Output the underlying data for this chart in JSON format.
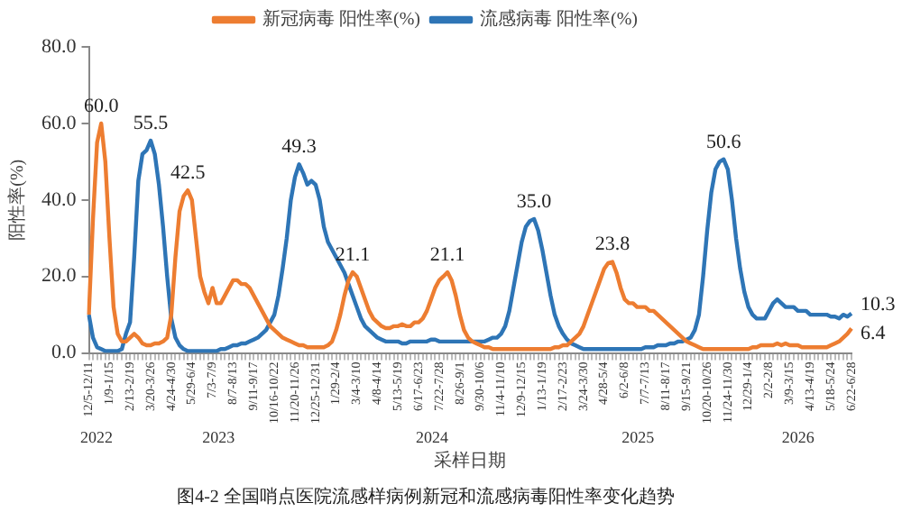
{
  "chart_data": {
    "type": "line",
    "title": "图4-2 全国哨点医院流感样病例新冠和流感病毒阳性率变化趋势",
    "xlabel": "采样日期",
    "ylabel": "阳性率(%)",
    "categories": [
      "12/5-12/11",
      null,
      null,
      null,
      null,
      "1/9-1/15",
      null,
      null,
      null,
      null,
      "2/13-2/19",
      null,
      null,
      null,
      null,
      "3/20-3/26",
      null,
      null,
      null,
      null,
      "4/24-4/30",
      null,
      null,
      null,
      null,
      "5/29-6/4",
      null,
      null,
      null,
      null,
      "7/3-7/9",
      null,
      null,
      null,
      null,
      "8/7-8/13",
      null,
      null,
      null,
      null,
      "9/11-9/17",
      null,
      null,
      null,
      null,
      "10/16-10/22",
      null,
      null,
      null,
      null,
      "11/20-11/26",
      null,
      null,
      null,
      null,
      "12/25-12/31",
      null,
      null,
      null,
      null,
      "1/29-2/4",
      null,
      null,
      null,
      null,
      "3/4-3/10",
      null,
      null,
      null,
      null,
      "4/8-4/14",
      null,
      null,
      null,
      null,
      "5/13-5/19",
      null,
      null,
      null,
      null,
      "6/17-6/23",
      null,
      null,
      null,
      null,
      "7/22-7/28",
      null,
      null,
      null,
      null,
      "8/26-9/1",
      null,
      null,
      null,
      null,
      "9/30-10/6",
      null,
      null,
      null,
      null,
      "11/4-11/10",
      null,
      null,
      null,
      null,
      "12/9-12/15",
      null,
      null,
      null,
      null,
      "1/13-1/19",
      null,
      null,
      null,
      null,
      "2/17-2/23",
      null,
      null,
      null,
      null,
      "3/24-3/30",
      null,
      null,
      null,
      null,
      "4/28-5/4",
      null,
      null,
      null,
      null,
      "6/2-6/8",
      null,
      null,
      null,
      null,
      "7/7-7/13",
      null,
      null,
      null,
      null,
      "8/11-8/17",
      null,
      null,
      null,
      null,
      "9/15-9/21",
      null,
      null,
      null,
      null,
      "10/20-10/26",
      null,
      null,
      null,
      null,
      "11/24-11/30",
      null,
      null,
      null,
      null,
      "12/29-1/4",
      null,
      null,
      null,
      null,
      "2/2-2/8",
      null,
      null,
      null,
      null,
      "3/9-3/15",
      null,
      null,
      null,
      null,
      "4/13-4/19",
      null,
      null,
      null,
      null,
      "5/18-5/24",
      null,
      null,
      null,
      null,
      "6/22-6/28"
    ],
    "series": [
      {
        "name": "新冠病毒 阳性率(%)",
        "color": "#ed7d31",
        "values": [
          10,
          35,
          55,
          60.0,
          50,
          30,
          12,
          5,
          3,
          3,
          4,
          5,
          4,
          2.5,
          2,
          2,
          2.5,
          2.5,
          3,
          4,
          10,
          25,
          37,
          41,
          42.5,
          40,
          30,
          20,
          16,
          13,
          17,
          13,
          13,
          15,
          17,
          19,
          19,
          18,
          18,
          17,
          15,
          13,
          11,
          9,
          7,
          6,
          5,
          4,
          3.5,
          3,
          2.5,
          2,
          2,
          1.5,
          1.5,
          1.5,
          1.5,
          1.5,
          2,
          3,
          6,
          10,
          15,
          19,
          21.1,
          20,
          17,
          14,
          11,
          9,
          8,
          7,
          6.5,
          6.5,
          7,
          7,
          7.5,
          7,
          7,
          8,
          8,
          9,
          11,
          14,
          17,
          19,
          20,
          21.1,
          19,
          15,
          10,
          6,
          4,
          3,
          2.5,
          2,
          1.5,
          1.5,
          1,
          1,
          1,
          1,
          1,
          1,
          1,
          1,
          1,
          1,
          1,
          1,
          1,
          1,
          1,
          1.5,
          1.5,
          2,
          2,
          3,
          4,
          5,
          7,
          10,
          13,
          16,
          19,
          22,
          23.5,
          23.8,
          21,
          17,
          14,
          13,
          13,
          12,
          12,
          12,
          11,
          11,
          10,
          9,
          8,
          7,
          6,
          5,
          4,
          3,
          2.5,
          2,
          1.5,
          1,
          1,
          1,
          1,
          1,
          1,
          1,
          1,
          1,
          1,
          1,
          1,
          1.5,
          1.5,
          2,
          2,
          2,
          2,
          2.5,
          2,
          2.5,
          2,
          2,
          2,
          1.5,
          1.5,
          1.5,
          1.5,
          1.5,
          1.5,
          1.5,
          2,
          2.5,
          3,
          4,
          5,
          6.4
        ],
        "value_labels": [
          null,
          null,
          null,
          "60.0",
          null,
          null,
          null,
          null,
          null,
          null,
          null,
          null,
          null,
          null,
          null,
          null,
          null,
          null,
          null,
          null,
          null,
          null,
          null,
          null,
          "42.5",
          null,
          null,
          null,
          null,
          null,
          null,
          null,
          null,
          null,
          null,
          null,
          null,
          null,
          null,
          null,
          null,
          null,
          null,
          null,
          null,
          null,
          null,
          null,
          null,
          null,
          null,
          null,
          null,
          null,
          null,
          null,
          null,
          null,
          null,
          null,
          null,
          null,
          null,
          null,
          "21.1",
          null,
          null,
          null,
          null,
          null,
          null,
          null,
          null,
          null,
          null,
          null,
          null,
          null,
          null,
          null,
          null,
          null,
          null,
          null,
          null,
          null,
          null,
          "21.1",
          null,
          null,
          null,
          null,
          null,
          null,
          null,
          null,
          null,
          null,
          null,
          null,
          null,
          null,
          null,
          null,
          null,
          null,
          null,
          null,
          null,
          null,
          null,
          null,
          null,
          null,
          null,
          null,
          null,
          null,
          null,
          null,
          null,
          null,
          null,
          null,
          null,
          null,
          null,
          "23.8",
          null,
          null,
          null,
          null,
          null,
          null,
          null,
          null,
          null,
          null,
          null,
          null,
          null,
          null,
          null,
          null,
          null,
          null,
          null,
          null,
          null,
          null,
          null,
          null,
          null,
          null,
          null,
          null,
          null,
          null,
          null,
          null,
          null,
          null,
          null,
          null,
          null,
          null,
          null,
          null,
          null,
          null,
          null,
          null,
          null,
          null,
          null,
          null,
          null,
          null,
          null,
          null,
          null,
          null,
          null,
          null,
          null,
          "6.4"
        ]
      },
      {
        "name": "流感病毒 阳性率(%)",
        "color": "#2e75b6",
        "values": [
          10,
          4,
          1.5,
          1,
          0.5,
          0.5,
          0.5,
          0.5,
          1,
          5,
          8,
          25,
          45,
          52,
          53,
          55.5,
          52,
          44,
          33,
          20,
          9,
          4,
          2,
          1,
          0.5,
          0.5,
          0.5,
          0.5,
          0.5,
          0.5,
          0.5,
          0.5,
          1,
          1,
          1.5,
          2,
          2,
          2.5,
          2.5,
          3,
          3.5,
          4,
          5,
          6,
          8,
          10,
          15,
          22,
          30,
          40,
          46,
          49.3,
          47,
          44,
          45,
          44,
          40,
          33,
          29,
          27,
          25,
          23,
          21,
          18,
          15,
          12,
          9,
          7,
          6,
          5,
          4,
          3.5,
          3,
          3,
          3,
          3,
          2.5,
          2.5,
          3,
          3,
          3,
          3,
          3,
          3.5,
          3.5,
          3,
          3,
          3,
          3,
          3,
          3,
          3,
          3,
          3,
          3,
          3,
          3,
          3.5,
          4,
          4,
          5,
          7,
          11,
          17,
          23,
          29,
          33,
          34.5,
          35.0,
          32,
          27,
          21,
          15,
          10,
          7,
          5,
          3.5,
          2.5,
          2,
          1.5,
          1,
          1,
          1,
          1,
          1,
          1,
          1,
          1,
          1,
          1,
          1,
          1,
          1,
          1,
          1,
          1.5,
          1.5,
          1.5,
          2,
          2,
          2,
          2.5,
          2.5,
          3,
          3,
          3.5,
          4,
          6,
          10,
          20,
          32,
          42,
          48,
          50,
          50.6,
          48,
          40,
          30,
          22,
          16,
          12,
          10,
          9,
          9,
          9,
          11,
          13,
          14,
          13,
          12,
          12,
          12,
          11,
          11,
          11,
          10,
          10,
          10,
          10,
          10,
          9.5,
          9.5,
          9,
          10,
          9.5,
          10.3
        ],
        "value_labels": [
          null,
          null,
          null,
          null,
          null,
          null,
          null,
          null,
          null,
          null,
          null,
          null,
          null,
          null,
          null,
          "55.5",
          null,
          null,
          null,
          null,
          null,
          null,
          null,
          null,
          null,
          null,
          null,
          null,
          null,
          null,
          null,
          null,
          null,
          null,
          null,
          null,
          null,
          null,
          null,
          null,
          null,
          null,
          null,
          null,
          null,
          null,
          null,
          null,
          null,
          null,
          null,
          "49.3",
          null,
          null,
          null,
          null,
          null,
          null,
          null,
          null,
          null,
          null,
          null,
          null,
          null,
          null,
          null,
          null,
          null,
          null,
          null,
          null,
          null,
          null,
          null,
          null,
          null,
          null,
          null,
          null,
          null,
          null,
          null,
          null,
          null,
          null,
          null,
          null,
          null,
          null,
          null,
          null,
          null,
          null,
          null,
          null,
          null,
          null,
          null,
          null,
          null,
          null,
          null,
          null,
          null,
          null,
          null,
          null,
          "35.0",
          null,
          null,
          null,
          null,
          null,
          null,
          null,
          null,
          null,
          null,
          null,
          null,
          null,
          null,
          null,
          null,
          null,
          null,
          null,
          null,
          null,
          null,
          null,
          null,
          null,
          null,
          null,
          null,
          null,
          null,
          null,
          null,
          null,
          null,
          null,
          null,
          null,
          null,
          null,
          null,
          null,
          null,
          null,
          null,
          null,
          "50.6",
          null,
          null,
          null,
          null,
          null,
          null,
          null,
          null,
          null,
          null,
          null,
          null,
          null,
          null,
          null,
          null,
          null,
          null,
          null,
          null,
          null,
          null,
          null,
          null,
          null,
          null,
          null,
          null,
          null,
          null,
          "10.3"
        ]
      }
    ],
    "ylim": [
      0,
      80
    ],
    "yticks": [
      {
        "value": 0,
        "label": "0.0"
      },
      {
        "value": 20,
        "label": "20.0"
      },
      {
        "value": 40,
        "label": "40.0"
      },
      {
        "value": 60,
        "label": "60.0"
      },
      {
        "value": 80,
        "label": "80.0"
      }
    ],
    "annotations": [
      "2022",
      "2023",
      "2024",
      "2025",
      "2026"
    ],
    "grid": false,
    "legend": "top",
    "marker": "none",
    "line_style": "solid"
  }
}
